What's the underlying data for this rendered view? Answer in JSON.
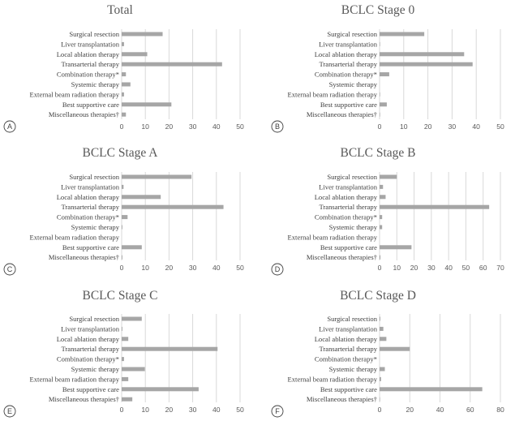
{
  "figure": {
    "bar_color": "#a6a6a6",
    "grid_color": "#d9d9d9",
    "text_color": "#404040"
  },
  "chart_data": [
    {
      "panel": "A",
      "type": "bar",
      "orientation": "horizontal",
      "title": "Total",
      "categories": [
        "Surgical resection",
        "Liver transplantation",
        "Local ablation therapy",
        "Transarterial therapy",
        "Combination therapy*",
        "Systemic therapy",
        "External beam radiation therapy",
        "Best supportive care",
        "Miscellaneous therapies†"
      ],
      "values": [
        17.3,
        1.0,
        10.8,
        42.4,
        1.8,
        3.7,
        1.0,
        21.0,
        1.8
      ],
      "xlim": [
        0,
        50
      ],
      "xticks": [
        "0",
        "10",
        "20",
        "30",
        "40",
        "50"
      ],
      "grid": true
    },
    {
      "panel": "B",
      "type": "bar",
      "orientation": "horizontal",
      "title": "BCLC Stage 0",
      "categories": [
        "Surgical resection",
        "Liver transplantation",
        "Local ablation therapy",
        "Transarterial therapy",
        "Combination therapy*",
        "Systemic therapy",
        "External beam radiation therapy",
        "Best supportive care",
        "Miscellaneous therapies†"
      ],
      "values": [
        18.5,
        0.2,
        35.0,
        38.5,
        4.0,
        0,
        0.2,
        3.0,
        0.2
      ],
      "xlim": [
        0,
        50
      ],
      "xticks": [
        "0",
        "10",
        "20",
        "30",
        "40",
        "50"
      ],
      "grid": true
    },
    {
      "panel": "C",
      "type": "bar",
      "orientation": "horizontal",
      "title": "BCLC Stage A",
      "categories": [
        "Surgical resection",
        "Liver transplantation",
        "Local ablation therapy",
        "Transarterial therapy",
        "Combination therapy*",
        "Systemic therapy",
        "External beam radiation therapy",
        "Best supportive care",
        "Miscellaneous therapies†"
      ],
      "values": [
        29.5,
        0.8,
        16.5,
        43.0,
        2.5,
        0.3,
        0,
        8.5,
        0.3
      ],
      "xlim": [
        0,
        50
      ],
      "xticks": [
        "0",
        "10",
        "20",
        "30",
        "40",
        "50"
      ],
      "grid": true
    },
    {
      "panel": "D",
      "type": "bar",
      "orientation": "horizontal",
      "title": "BCLC Stage B",
      "categories": [
        "Surgical resection",
        "Liver transplantation",
        "Local ablation therapy",
        "Transarterial therapy",
        "Combination therapy*",
        "Systemic therapy",
        "External beam radiation therapy",
        "Best supportive care",
        "Miscellaneous therapies†"
      ],
      "values": [
        10.0,
        2.0,
        3.5,
        63.5,
        1.5,
        1.5,
        0,
        18.5,
        0.5
      ],
      "xlim": [
        0,
        70
      ],
      "xticks": [
        "0",
        "10",
        "20",
        "30",
        "40",
        "50",
        "60",
        "70"
      ],
      "grid": true
    },
    {
      "panel": "E",
      "type": "bar",
      "orientation": "horizontal",
      "title": "BCLC Stage C",
      "categories": [
        "Surgical resection",
        "Liver transplantation",
        "Local ablation therapy",
        "Transarterial therapy",
        "Combination therapy*",
        "Systemic therapy",
        "External beam radiation therapy",
        "Best supportive care",
        "Miscellaneous therapies†"
      ],
      "values": [
        8.5,
        0.3,
        2.8,
        40.5,
        1.0,
        9.8,
        2.8,
        32.5,
        4.5
      ],
      "xlim": [
        0,
        50
      ],
      "xticks": [
        "0",
        "10",
        "20",
        "30",
        "40",
        "50"
      ],
      "grid": true
    },
    {
      "panel": "F",
      "type": "bar",
      "orientation": "horizontal",
      "title": "BCLC Stage D",
      "categories": [
        "Surgical resection",
        "Liver transplantation",
        "Local ablation therapy",
        "Transarterial therapy",
        "Combination therapy*",
        "Systemic therapy",
        "External beam radiation therapy",
        "Best supportive care",
        "Miscellaneous therapies†"
      ],
      "values": [
        0.5,
        2.5,
        4.5,
        20.0,
        0,
        3.5,
        1.0,
        68.0,
        0.3
      ],
      "xlim": [
        0,
        80
      ],
      "xticks": [
        "0",
        "20",
        "40",
        "60",
        "80"
      ],
      "grid": true
    }
  ]
}
